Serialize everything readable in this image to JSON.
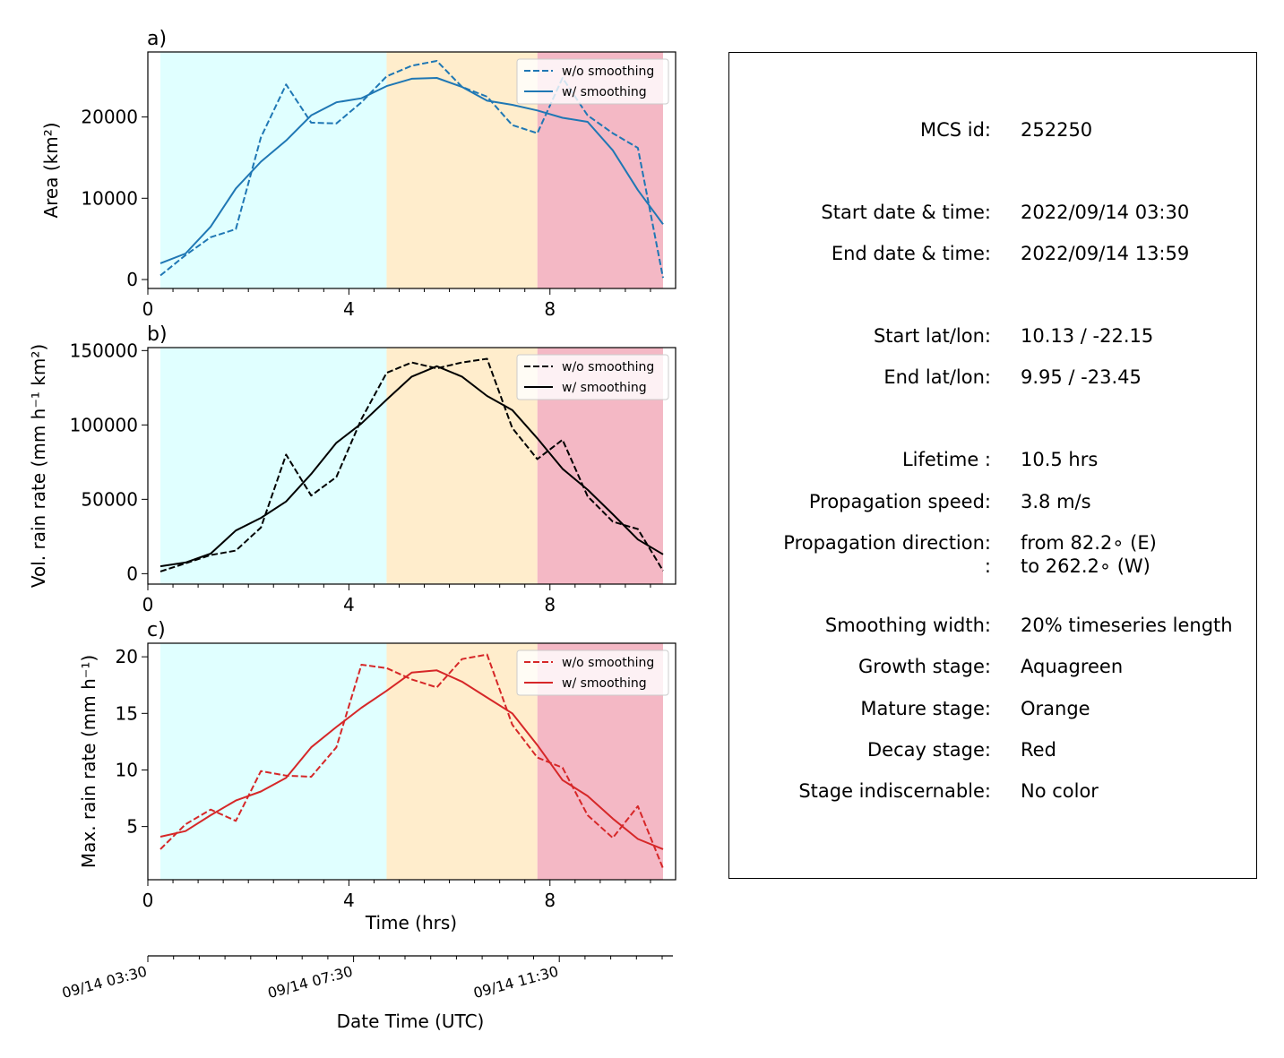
{
  "time_axis_label": "Time (hrs)",
  "date_axis": {
    "label": "Date Time (UTC)",
    "tick_labels": [
      "09/14 03:30",
      "09/14 07:30",
      "09/14 11:30"
    ]
  },
  "stages_shading": {
    "growth": {
      "start": 0.25,
      "end": 4.75,
      "color": "#e0ffff"
    },
    "mature": {
      "start": 4.75,
      "end": 7.75,
      "color": "#ffedcc"
    },
    "decay": {
      "start": 7.75,
      "end": 10.25,
      "color": "#f4b8c5"
    }
  },
  "chart_data": [
    {
      "type": "line",
      "panel_label": "a)",
      "ylabel": "Area  (km²)",
      "xlim": [
        0,
        10.5
      ],
      "ylim": [
        -1100,
        28000
      ],
      "xticks": [
        0,
        4,
        8
      ],
      "yticks": [
        0,
        10000,
        20000
      ],
      "ytick_labels": [
        "0",
        "10000",
        "20000"
      ],
      "legend_position": "upper right",
      "x": [
        0.25,
        0.75,
        1.25,
        1.75,
        2.25,
        2.75,
        3.25,
        3.75,
        4.25,
        4.75,
        5.25,
        5.75,
        6.25,
        6.75,
        7.25,
        7.75,
        8.25,
        8.75,
        9.25,
        9.75,
        10.25
      ],
      "series": [
        {
          "name": "w/o smoothing",
          "style": "dashed",
          "color": "#1f77b4",
          "values": [
            500,
            3000,
            5200,
            6200,
            17500,
            24000,
            19300,
            19200,
            21800,
            25000,
            26300,
            26900,
            23700,
            22500,
            19000,
            18000,
            24800,
            20200,
            18000,
            16200,
            200
          ]
        },
        {
          "name": "w/ smoothing",
          "style": "solid",
          "color": "#1f77b4",
          "values": [
            2000,
            3200,
            6500,
            11200,
            14500,
            17100,
            20200,
            21800,
            22300,
            23800,
            24700,
            24800,
            23700,
            22000,
            21500,
            20800,
            19900,
            19400,
            15900,
            11000,
            6800
          ]
        }
      ]
    },
    {
      "type": "line",
      "panel_label": "b)",
      "ylabel": "Vol. rain rate (mm h⁻¹ km²)",
      "xlim": [
        0,
        10.5
      ],
      "ylim": [
        -7000,
        152000
      ],
      "xticks": [
        0,
        4,
        8
      ],
      "yticks": [
        0,
        50000,
        100000,
        150000
      ],
      "ytick_labels": [
        "0",
        "50000",
        "100000",
        "150000"
      ],
      "legend_position": "upper right",
      "x": [
        0.25,
        0.75,
        1.25,
        1.75,
        2.25,
        2.75,
        3.25,
        3.75,
        4.25,
        4.75,
        5.25,
        5.75,
        6.25,
        6.75,
        7.25,
        7.75,
        8.25,
        8.75,
        9.25,
        9.75,
        10.25
      ],
      "series": [
        {
          "name": "w/o smoothing",
          "style": "dashed",
          "color": "#000000",
          "values": [
            1500,
            7000,
            12500,
            15500,
            31000,
            80000,
            52500,
            65000,
            104000,
            135000,
            142000,
            138000,
            142000,
            144500,
            98000,
            77000,
            90000,
            52000,
            35000,
            30000,
            2000
          ]
        },
        {
          "name": "w/ smoothing",
          "style": "solid",
          "color": "#000000",
          "values": [
            5000,
            7500,
            13500,
            29000,
            37500,
            48500,
            67000,
            88000,
            101000,
            117000,
            132500,
            139500,
            132500,
            119500,
            110000,
            91000,
            70500,
            56500,
            40000,
            23000,
            13000
          ]
        }
      ]
    },
    {
      "type": "line",
      "panel_label": "c)",
      "ylabel": "Max. rain rate  (mm h⁻¹)",
      "xlim": [
        0,
        10.5
      ],
      "ylim": [
        0.3,
        21.2
      ],
      "xticks": [
        0,
        4,
        8
      ],
      "yticks": [
        5,
        10,
        15,
        20
      ],
      "ytick_labels": [
        "5",
        "10",
        "15",
        "20"
      ],
      "legend_position": "upper right",
      "x": [
        0.25,
        0.75,
        1.25,
        1.75,
        2.25,
        2.75,
        3.25,
        3.75,
        4.25,
        4.75,
        5.25,
        5.75,
        6.25,
        6.75,
        7.25,
        7.75,
        8.25,
        8.75,
        9.25,
        9.75,
        10.25
      ],
      "series": [
        {
          "name": "w/o smoothing",
          "style": "dashed",
          "color": "#d62728",
          "values": [
            3.0,
            5.2,
            6.5,
            5.5,
            9.9,
            9.5,
            9.4,
            12.0,
            19.3,
            19.0,
            18.0,
            17.3,
            19.8,
            20.2,
            14.0,
            11.1,
            10.2,
            6.0,
            4.0,
            6.8,
            1.3
          ]
        },
        {
          "name": "w/ smoothing",
          "style": "solid",
          "color": "#d62728",
          "values": [
            4.1,
            4.6,
            6.0,
            7.3,
            8.1,
            9.3,
            12.0,
            13.8,
            15.5,
            17.0,
            18.6,
            18.8,
            17.8,
            16.4,
            15.0,
            12.2,
            9.1,
            7.7,
            5.7,
            3.9,
            3.0
          ]
        }
      ]
    }
  ],
  "info": {
    "rows": [
      {
        "key": "MCS id:",
        "value": "252250"
      },
      {
        "key": "Start date & time:",
        "value": "2022/09/14 03:30"
      },
      {
        "key": "End date & time:",
        "value": "2022/09/14 13:59"
      },
      {
        "key": "Start lat/lon:",
        "value": "10.13 / -22.15"
      },
      {
        "key": "End lat/lon:",
        "value": "9.95 / -23.45"
      },
      {
        "key": "Lifetime :",
        "value": "10.5 hrs"
      },
      {
        "key": "Propagation speed:",
        "value": "3.8 m/s"
      },
      {
        "key": "Propagation direction:",
        "value": "from  82.2∘ (E)"
      },
      {
        "key": ":",
        "value": "to   262.2∘ (W)"
      },
      {
        "key": "Smoothing width:",
        "value": "20% timeseries length"
      },
      {
        "key": "Growth stage:",
        "value": "Aquagreen"
      },
      {
        "key": "Mature stage:",
        "value": "Orange"
      },
      {
        "key": "Decay stage:",
        "value": "Red"
      },
      {
        "key": "Stage indiscernable:",
        "value": "No color"
      }
    ]
  }
}
